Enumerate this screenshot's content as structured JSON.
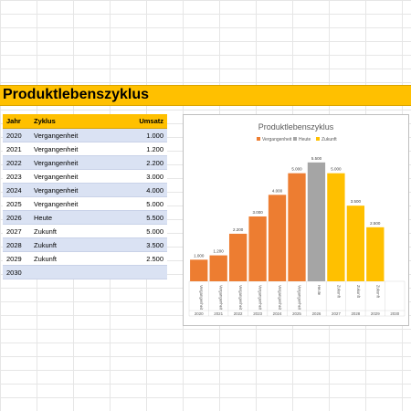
{
  "sheet": {
    "title": "Produktlebenszyklus"
  },
  "table": {
    "headers": {
      "year": "Jahr",
      "cycle": "Zyklus",
      "sales": "Umsatz"
    },
    "rows": [
      {
        "year": "2020",
        "cycle": "Vergangenheit",
        "sales": "1.000"
      },
      {
        "year": "2021",
        "cycle": "Vergangenheit",
        "sales": "1.200"
      },
      {
        "year": "2022",
        "cycle": "Vergangenheit",
        "sales": "2.200"
      },
      {
        "year": "2023",
        "cycle": "Vergangenheit",
        "sales": "3.000"
      },
      {
        "year": "2024",
        "cycle": "Vergangenheit",
        "sales": "4.000"
      },
      {
        "year": "2025",
        "cycle": "Vergangenheit",
        "sales": "5.000"
      },
      {
        "year": "2026",
        "cycle": "Heute",
        "sales": "5.500"
      },
      {
        "year": "2027",
        "cycle": "Zukunft",
        "sales": "5.000"
      },
      {
        "year": "2028",
        "cycle": "Zukunft",
        "sales": "3.500"
      },
      {
        "year": "2029",
        "cycle": "Zukunft",
        "sales": "2.500"
      },
      {
        "year": "2030",
        "cycle": "",
        "sales": ""
      }
    ]
  },
  "chart_data": {
    "type": "bar",
    "title": "Produktlebenszyklus",
    "legend": {
      "placement": "top"
    },
    "categories": [
      {
        "year": "2020",
        "cycle": "Vergangenheit"
      },
      {
        "year": "2021",
        "cycle": "Vergangenheit"
      },
      {
        "year": "2022",
        "cycle": "Vergangenheit"
      },
      {
        "year": "2023",
        "cycle": "Vergangenheit"
      },
      {
        "year": "2024",
        "cycle": "Vergangenheit"
      },
      {
        "year": "2025",
        "cycle": "Vergangenheit"
      },
      {
        "year": "2026",
        "cycle": "Heute"
      },
      {
        "year": "2027",
        "cycle": "Zukunft"
      },
      {
        "year": "2028",
        "cycle": "Zukunft"
      },
      {
        "year": "2029",
        "cycle": "Zukunft"
      },
      {
        "year": "2030",
        "cycle": ""
      }
    ],
    "series": [
      {
        "name": "Vergangenheit",
        "color": "#ed7d31",
        "values": [
          1000,
          1200,
          2200,
          3000,
          4000,
          5000,
          null,
          null,
          null,
          null,
          null
        ]
      },
      {
        "name": "Heute",
        "color": "#a5a5a5",
        "values": [
          null,
          null,
          null,
          null,
          null,
          null,
          5500,
          null,
          null,
          null,
          null
        ]
      },
      {
        "name": "Zukunft",
        "color": "#ffc000",
        "values": [
          null,
          null,
          null,
          null,
          null,
          null,
          null,
          5000,
          3500,
          2500,
          null
        ]
      }
    ],
    "data_labels": [
      "1.000",
      "1.200",
      "2.200",
      "3.000",
      "4.000",
      "5.000",
      "5.500",
      "5.000",
      "3.500",
      "2.500",
      ""
    ],
    "ylim": [
      0,
      6000
    ],
    "grid": false
  }
}
